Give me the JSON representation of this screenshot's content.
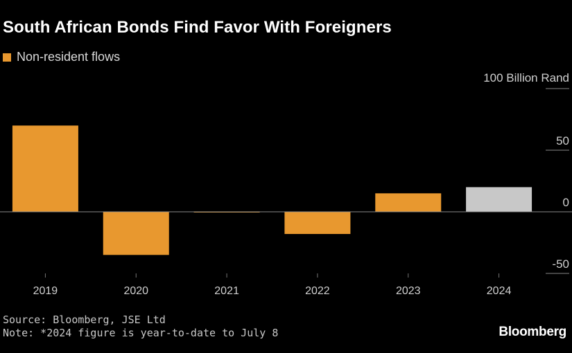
{
  "chart_data": {
    "type": "bar",
    "title": "South African Bonds Find Favor With Foreigners",
    "legend": [
      "Non-resident flows"
    ],
    "unit_label": "100 Billion Rand",
    "categories": [
      "2019",
      "2020",
      "2021",
      "2022",
      "2023",
      "2024"
    ],
    "series": [
      {
        "name": "Non-resident flows",
        "values": [
          70,
          -35,
          -0.5,
          -18,
          15,
          20
        ]
      }
    ],
    "bar_colors": [
      "#e8982f",
      "#e8982f",
      "#e8982f",
      "#e8982f",
      "#e8982f",
      "#c8c8c8"
    ],
    "y_ticks": [
      50,
      0,
      -50
    ],
    "ylim": [
      -50,
      100
    ],
    "xlabel": "",
    "ylabel": "",
    "grid": false
  },
  "colors": {
    "primary": "#e8982f",
    "highlight": "#c8c8c8",
    "background": "#000000"
  },
  "source": "Source: Bloomberg, JSE Ltd",
  "note": "Note: *2024 figure is year-to-date to July 8",
  "brand": "Bloomberg"
}
